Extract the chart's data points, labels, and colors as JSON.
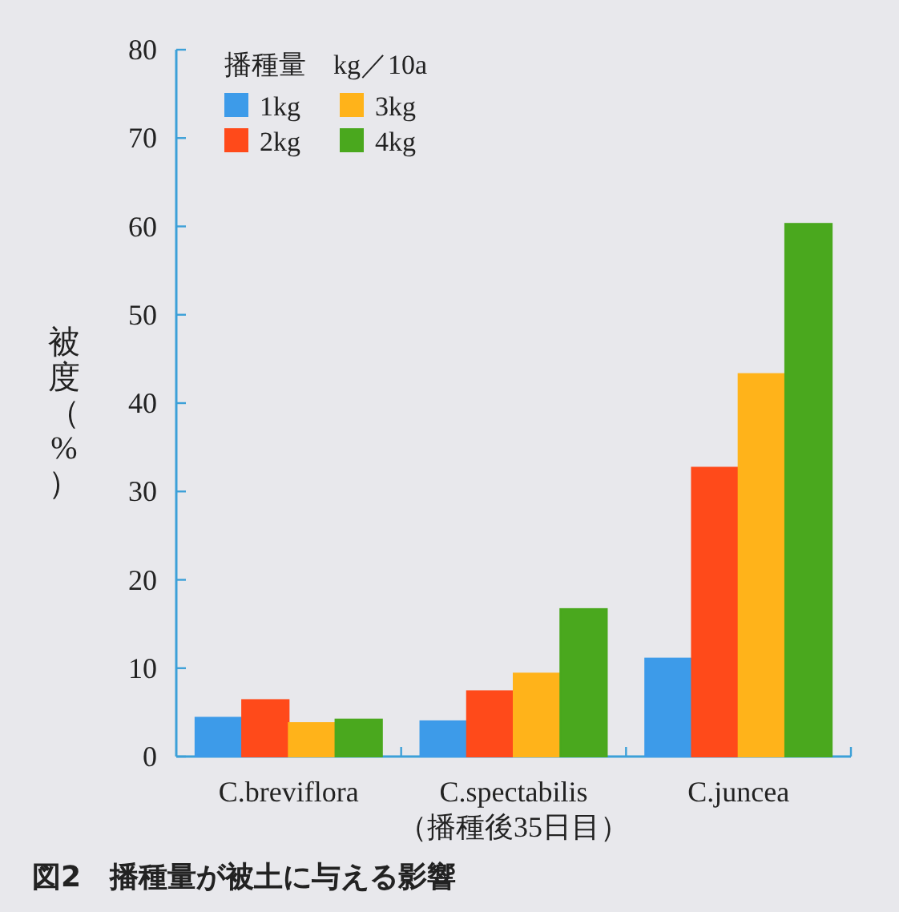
{
  "chart_data": {
    "type": "bar",
    "title": "図2　播種量が被土に与える影響",
    "ylabel": "被度（%）",
    "legend_title": "播種量　kg／10a",
    "legend": "top left",
    "categories": [
      "C.breviflora",
      "C.spectabilis\n（播種後35日目）",
      "C.juncea"
    ],
    "ylim": [
      0,
      80
    ],
    "yticks": [
      0,
      10,
      20,
      30,
      40,
      50,
      60,
      70,
      80
    ],
    "series": [
      {
        "name": "1kg",
        "color": "#3d9be9",
        "values": [
          4.4,
          4.0,
          11.1
        ]
      },
      {
        "name": "2kg",
        "color": "#ff4a1a",
        "values": [
          6.4,
          7.4,
          32.7
        ]
      },
      {
        "name": "3kg",
        "color": "#ffb31a",
        "values": [
          3.8,
          9.4,
          43.3
        ]
      },
      {
        "name": "4kg",
        "color": "#4aa81e",
        "values": [
          4.2,
          16.7,
          60.3
        ]
      }
    ]
  }
}
